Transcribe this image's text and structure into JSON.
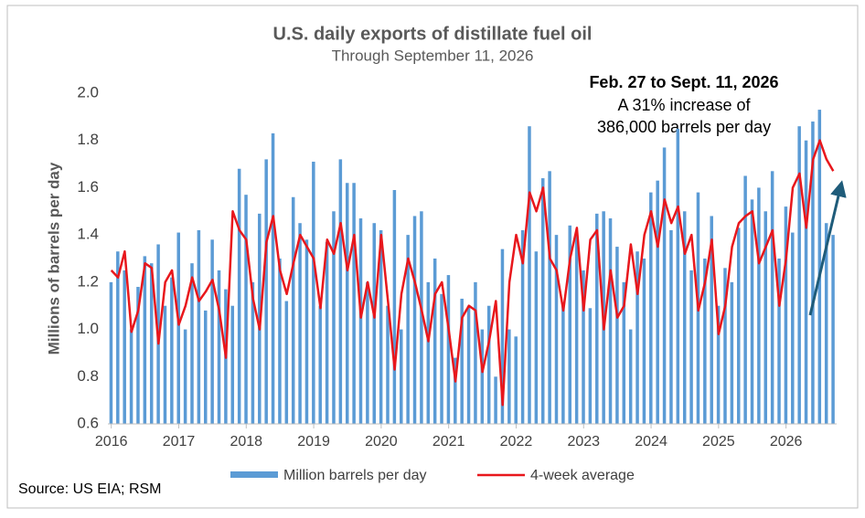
{
  "chart_data": {
    "type": "bar_line",
    "title": "U.S. daily exports of distillate fuel oil",
    "subtitle": "Through September 11, 2026",
    "y_label": "Millions of barrels per day",
    "annotation": {
      "heading": "Feb. 27 to Sept. 11, 2026",
      "lines": [
        "A 31% increase of",
        "386,000 barrels per day"
      ]
    },
    "source": "Source: US EIA; RSM",
    "xlim": [
      2015.95,
      2026.75
    ],
    "xticks": [
      2016,
      2017,
      2018,
      2019,
      2020,
      2021,
      2022,
      2023,
      2024,
      2025,
      2026
    ],
    "ylim": [
      0.6,
      2.0
    ],
    "yticks": [
      0.6,
      0.8,
      {
        "value": 1,
        "label": "1.0"
      },
      1.2,
      1.4,
      1.6,
      1.8,
      {
        "value": 2,
        "label": "2.0"
      }
    ],
    "grid": false,
    "x": [
      2016.0,
      2016.1,
      2016.2,
      2016.3,
      2016.4,
      2016.5,
      2016.6,
      2016.7,
      2016.8,
      2016.9,
      2017.0,
      2017.1,
      2017.2,
      2017.3,
      2017.4,
      2017.5,
      2017.6,
      2017.7,
      2017.8,
      2017.9,
      2018.0,
      2018.1,
      2018.2,
      2018.3,
      2018.4,
      2018.5,
      2018.6,
      2018.7,
      2018.8,
      2018.9,
      2019.0,
      2019.1,
      2019.2,
      2019.3,
      2019.4,
      2019.5,
      2019.6,
      2019.7,
      2019.8,
      2019.9,
      2020.0,
      2020.1,
      2020.2,
      2020.3,
      2020.4,
      2020.5,
      2020.6,
      2020.7,
      2020.8,
      2020.9,
      2021.0,
      2021.1,
      2021.2,
      2021.3,
      2021.4,
      2021.5,
      2021.6,
      2021.7,
      2021.8,
      2021.9,
      2022.0,
      2022.1,
      2022.2,
      2022.3,
      2022.4,
      2022.5,
      2022.6,
      2022.7,
      2022.8,
      2022.9,
      2023.0,
      2023.1,
      2023.2,
      2023.3,
      2023.4,
      2023.5,
      2023.6,
      2023.7,
      2023.8,
      2023.9,
      2024.0,
      2024.1,
      2024.2,
      2024.3,
      2024.4,
      2024.5,
      2024.6,
      2024.7,
      2024.8,
      2024.9,
      2025.0,
      2025.1,
      2025.2,
      2025.3,
      2025.4,
      2025.5,
      2025.6,
      2025.7,
      2025.8,
      2025.9,
      2026.0,
      2026.1,
      2026.2,
      2026.3,
      2026.4,
      2026.5,
      2026.6,
      2026.7
    ],
    "series": [
      {
        "name": "Million barrels per day",
        "kind": "bar",
        "color": "#5b9bd5",
        "values": [
          1.2,
          1.33,
          1.25,
          1.0,
          1.18,
          1.31,
          1.28,
          1.36,
          1.1,
          1.22,
          1.41,
          1.0,
          1.28,
          1.42,
          1.08,
          1.38,
          1.25,
          1.17,
          1.1,
          1.68,
          1.57,
          1.2,
          1.49,
          1.72,
          1.83,
          1.3,
          1.12,
          1.56,
          1.45,
          1.38,
          1.71,
          1.1,
          1.37,
          1.5,
          1.72,
          1.62,
          1.62,
          1.47,
          1.2,
          1.45,
          1.42,
          1.1,
          1.59,
          1.0,
          1.4,
          1.48,
          1.5,
          1.2,
          1.3,
          1.15,
          1.23,
          0.88,
          1.13,
          1.1,
          1.2,
          1.0,
          1.1,
          0.8,
          1.34,
          1.0,
          0.97,
          1.42,
          1.86,
          1.33,
          1.64,
          1.67,
          1.4,
          1.1,
          1.44,
          1.4,
          1.25,
          1.09,
          1.49,
          1.5,
          1.47,
          1.35,
          1.2,
          1.0,
          1.33,
          1.3,
          1.58,
          1.63,
          1.77,
          1.42,
          1.85,
          1.5,
          1.25,
          1.58,
          1.3,
          1.48,
          1.1,
          1.26,
          1.2,
          1.43,
          1.65,
          1.55,
          1.6,
          1.5,
          1.67,
          1.3,
          1.52,
          1.41,
          1.86,
          1.8,
          1.88,
          1.93,
          1.45,
          1.4
        ]
      },
      {
        "name": "4-week average",
        "kind": "line",
        "color": "#e8171c",
        "values": [
          1.25,
          1.22,
          1.33,
          0.99,
          1.08,
          1.28,
          1.26,
          0.94,
          1.2,
          1.25,
          1.02,
          1.1,
          1.22,
          1.12,
          1.16,
          1.21,
          1.08,
          0.88,
          1.5,
          1.42,
          1.38,
          1.13,
          1.0,
          1.37,
          1.48,
          1.25,
          1.15,
          1.28,
          1.4,
          1.35,
          1.3,
          1.09,
          1.38,
          1.32,
          1.45,
          1.25,
          1.4,
          1.05,
          1.2,
          1.05,
          1.4,
          1.12,
          0.83,
          1.15,
          1.3,
          1.2,
          1.08,
          0.95,
          1.15,
          1.2,
          1.0,
          0.78,
          1.05,
          1.1,
          1.08,
          0.82,
          0.95,
          1.12,
          0.68,
          1.2,
          1.4,
          1.28,
          1.58,
          1.5,
          1.6,
          1.3,
          1.25,
          1.08,
          1.3,
          1.43,
          1.08,
          1.38,
          1.42,
          1.0,
          1.25,
          1.05,
          1.1,
          1.36,
          1.15,
          1.4,
          1.5,
          1.35,
          1.55,
          1.45,
          1.52,
          1.32,
          1.4,
          1.08,
          1.2,
          1.38,
          0.98,
          1.1,
          1.35,
          1.45,
          1.48,
          1.5,
          1.28,
          1.35,
          1.42,
          1.1,
          1.3,
          1.6,
          1.66,
          1.43,
          1.72,
          1.8,
          1.72,
          1.67
        ]
      }
    ]
  }
}
